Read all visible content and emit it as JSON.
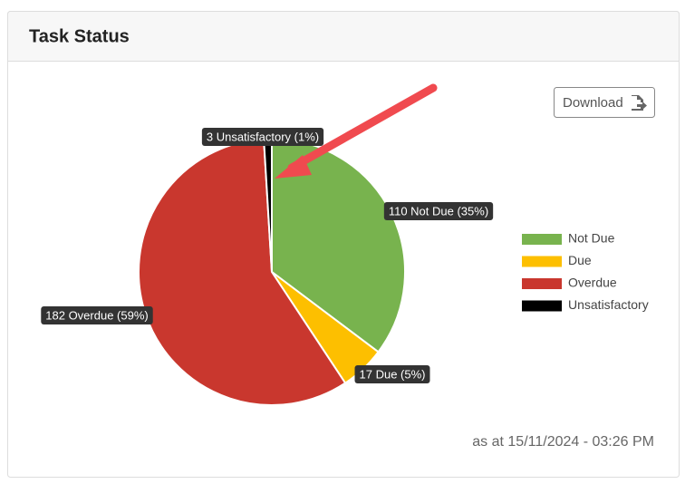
{
  "chart_data": {
    "type": "pie",
    "title": "Task Status",
    "categories": [
      "Not Due",
      "Due",
      "Overdue",
      "Unsatisfactory"
    ],
    "values": [
      110,
      17,
      182,
      3
    ],
    "value_labels": [
      "110 Not Due (35%)",
      "17 Due (5%)",
      "182 Overdue (59%)",
      "3 Unsatisfactory (1%)"
    ],
    "colors": [
      "#78b34e",
      "#fdbf00",
      "#c9372e",
      "#000000"
    ],
    "legend": "right"
  },
  "download_button": "Download",
  "timestamp": "as at 15/11/2024 - 03:26 PM"
}
